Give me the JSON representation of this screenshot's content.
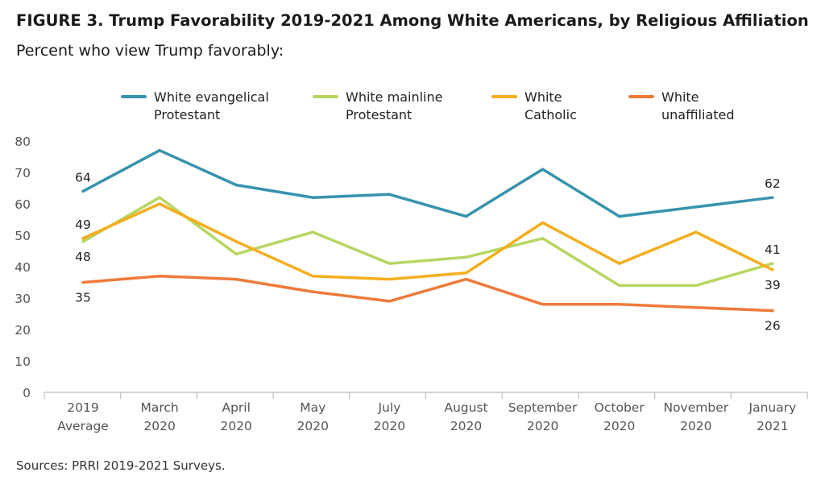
{
  "title": "FIGURE 3. Trump Favorability 2019-2021 Among White Americans, by Religious Affiliation",
  "subtitle": "Percent who view Trump favorably:",
  "source": "Sources: PRRI 2019-2021 Surveys.",
  "chart_data": {
    "type": "line",
    "title": "FIGURE 3. Trump Favorability 2019-2021 Among White Americans, by Religious Affiliation",
    "subtitle": "Percent who view Trump favorably:",
    "xlabel": "",
    "ylabel": "",
    "ylim": [
      0,
      80
    ],
    "yticks": [
      0,
      10,
      20,
      30,
      40,
      50,
      60,
      70,
      80
    ],
    "grid": false,
    "legend_position": "top",
    "categories": [
      [
        "2019",
        "Average"
      ],
      [
        "March",
        "2020"
      ],
      [
        "April",
        "2020"
      ],
      [
        "May",
        "2020"
      ],
      [
        "July",
        "2020"
      ],
      [
        "August",
        "2020"
      ],
      [
        "September",
        "2020"
      ],
      [
        "October",
        "2020"
      ],
      [
        "November",
        "2020"
      ],
      [
        "January",
        "2021"
      ]
    ],
    "series": [
      {
        "name": [
          "White evangelical",
          "Protestant"
        ],
        "color": "#3793AE",
        "values": [
          64,
          77,
          66,
          62,
          63,
          56,
          71,
          56,
          59,
          62
        ],
        "labels": [
          {
            "index": 0,
            "text": "64",
            "pos": "above"
          },
          {
            "index": 9,
            "text": "62",
            "pos": "above"
          }
        ]
      },
      {
        "name": [
          "White mainline",
          "Protestant"
        ],
        "color": "#B7D662",
        "values": [
          48,
          62,
          44,
          51,
          41,
          43,
          49,
          34,
          34,
          41
        ],
        "labels": [
          {
            "index": 0,
            "text": "48",
            "pos": "below"
          },
          {
            "index": 9,
            "text": "41",
            "pos": "above"
          }
        ]
      },
      {
        "name": [
          "White",
          "Catholic"
        ],
        "color": "#F4AE1E",
        "values": [
          49,
          60,
          48,
          37,
          36,
          38,
          54,
          41,
          51,
          39
        ],
        "labels": [
          {
            "index": 0,
            "text": "49",
            "pos": "above"
          },
          {
            "index": 9,
            "text": "39",
            "pos": "below"
          }
        ]
      },
      {
        "name": [
          "White",
          "unaffiliated"
        ],
        "color": "#EE7A3A",
        "values": [
          35,
          37,
          36,
          32,
          29,
          36,
          28,
          28,
          27,
          26
        ],
        "labels": [
          {
            "index": 0,
            "text": "35",
            "pos": "below"
          },
          {
            "index": 9,
            "text": "26",
            "pos": "below"
          }
        ]
      }
    ]
  }
}
